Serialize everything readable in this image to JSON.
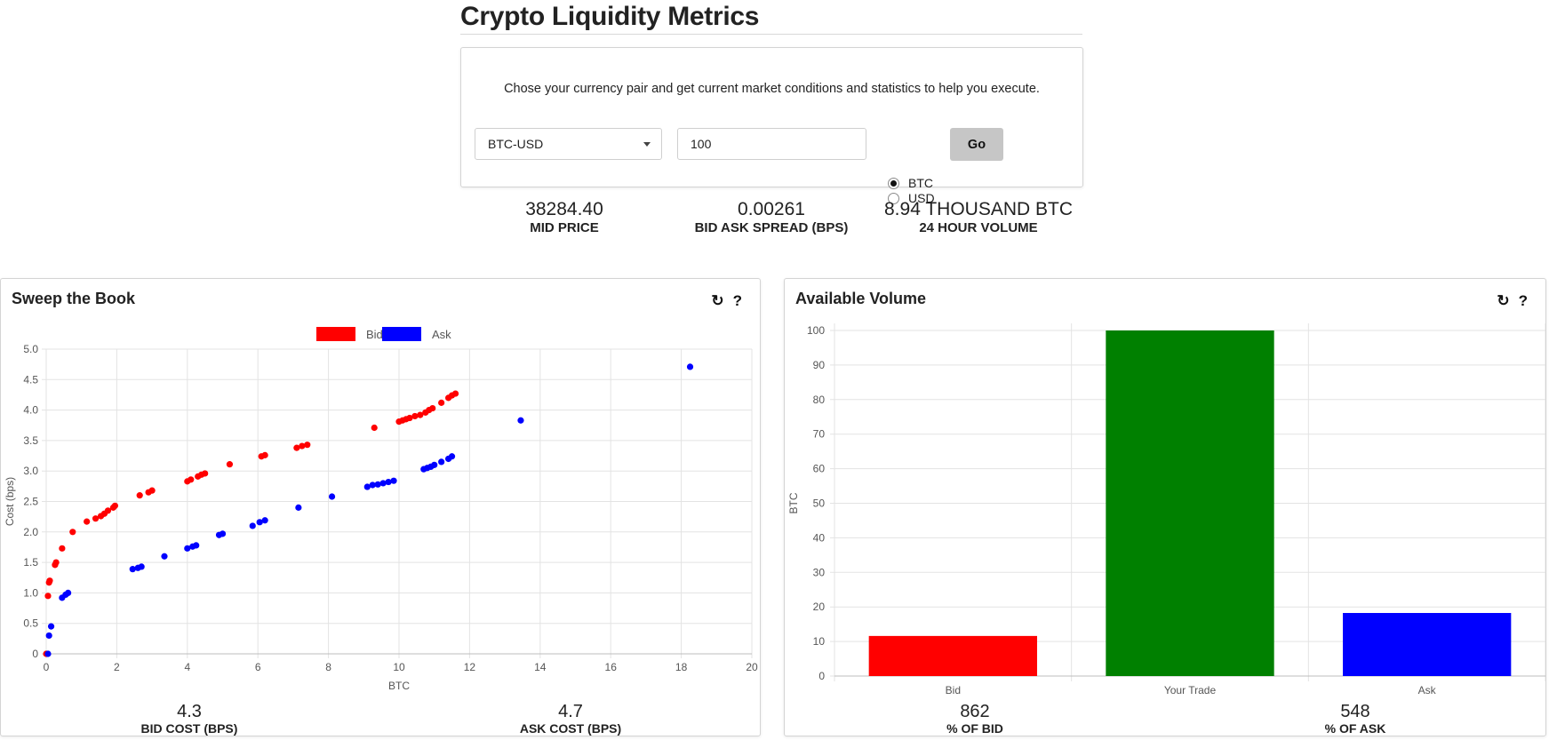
{
  "page": {
    "title": "Crypto Liquidity Metrics"
  },
  "form": {
    "intro": "Chose your currency pair and get current market conditions and statistics to help you execute.",
    "pair_selected": "BTC-USD",
    "amount_value": "100",
    "unit_options": [
      {
        "label": "BTC",
        "checked": true
      },
      {
        "label": "USD",
        "checked": false
      }
    ],
    "go_label": "Go"
  },
  "stats": [
    {
      "value": "38284.40",
      "label": "MID PRICE"
    },
    {
      "value": "0.00261",
      "label": "BID ASK SPREAD (BPS)"
    },
    {
      "value": "8.94 THOUSAND BTC",
      "label": "24 HOUR VOLUME"
    }
  ],
  "sweep_panel": {
    "title": "Sweep the Book",
    "tools": {
      "refresh_icon": "refresh-icon",
      "help_label": "?"
    },
    "metrics": [
      {
        "value": "4.3",
        "label": "BID COST (BPS)"
      },
      {
        "value": "4.7",
        "label": "ASK COST (BPS)"
      }
    ]
  },
  "volume_panel": {
    "title": "Available Volume",
    "tools": {
      "refresh_icon": "refresh-icon",
      "help_label": "?"
    },
    "metrics": [
      {
        "value": "862",
        "label": "% OF BID"
      },
      {
        "value": "548",
        "label": "% OF ASK"
      }
    ]
  },
  "chart_data": [
    {
      "type": "scatter",
      "title": "",
      "xlabel": "BTC",
      "ylabel": "Cost (bps)",
      "xlim": [
        0,
        20
      ],
      "ylim": [
        0,
        5
      ],
      "x_ticks": [
        "0",
        "2",
        "4",
        "6",
        "8",
        "10",
        "12",
        "14",
        "16",
        "18",
        "20"
      ],
      "y_ticks": [
        "0",
        "0.5",
        "1.0",
        "1.5",
        "2.0",
        "2.5",
        "3.0",
        "3.5",
        "4.0",
        "4.5",
        "5.0"
      ],
      "grid": true,
      "legend_position": "top-center",
      "series": [
        {
          "name": "Bid",
          "color": "#ff0000",
          "points": [
            [
              0,
              0
            ],
            [
              0.05,
              0.95
            ],
            [
              0.08,
              1.17
            ],
            [
              0.1,
              1.2
            ],
            [
              0.25,
              1.46
            ],
            [
              0.28,
              1.5
            ],
            [
              0.45,
              1.73
            ],
            [
              0.75,
              2.0
            ],
            [
              1.15,
              2.17
            ],
            [
              1.4,
              2.22
            ],
            [
              1.55,
              2.26
            ],
            [
              1.65,
              2.3
            ],
            [
              1.75,
              2.35
            ],
            [
              1.9,
              2.4
            ],
            [
              1.95,
              2.43
            ],
            [
              2.65,
              2.6
            ],
            [
              2.9,
              2.65
            ],
            [
              3.0,
              2.68
            ],
            [
              4.0,
              2.83
            ],
            [
              4.1,
              2.86
            ],
            [
              4.3,
              2.91
            ],
            [
              4.4,
              2.94
            ],
            [
              4.5,
              2.96
            ],
            [
              5.2,
              3.11
            ],
            [
              6.1,
              3.24
            ],
            [
              6.2,
              3.26
            ],
            [
              7.1,
              3.38
            ],
            [
              7.25,
              3.41
            ],
            [
              7.4,
              3.43
            ],
            [
              9.3,
              3.71
            ],
            [
              10.0,
              3.81
            ],
            [
              10.1,
              3.83
            ],
            [
              10.2,
              3.85
            ],
            [
              10.3,
              3.87
            ],
            [
              10.45,
              3.9
            ],
            [
              10.6,
              3.92
            ],
            [
              10.75,
              3.96
            ],
            [
              10.85,
              4.0
            ],
            [
              10.95,
              4.03
            ],
            [
              11.2,
              4.12
            ],
            [
              11.4,
              4.2
            ],
            [
              11.5,
              4.24
            ],
            [
              11.6,
              4.27
            ]
          ]
        },
        {
          "name": "Ask",
          "color": "#0000ff",
          "points": [
            [
              0.05,
              0
            ],
            [
              0.08,
              0.3
            ],
            [
              0.14,
              0.45
            ],
            [
              0.45,
              0.92
            ],
            [
              0.55,
              0.97
            ],
            [
              0.62,
              1.0
            ],
            [
              2.45,
              1.39
            ],
            [
              2.6,
              1.41
            ],
            [
              2.7,
              1.43
            ],
            [
              3.35,
              1.6
            ],
            [
              4.0,
              1.73
            ],
            [
              4.15,
              1.76
            ],
            [
              4.25,
              1.78
            ],
            [
              4.9,
              1.95
            ],
            [
              5.0,
              1.97
            ],
            [
              5.85,
              2.1
            ],
            [
              6.05,
              2.16
            ],
            [
              6.2,
              2.19
            ],
            [
              7.15,
              2.4
            ],
            [
              8.1,
              2.58
            ],
            [
              9.1,
              2.74
            ],
            [
              9.25,
              2.77
            ],
            [
              9.4,
              2.78
            ],
            [
              9.55,
              2.8
            ],
            [
              9.7,
              2.82
            ],
            [
              9.85,
              2.84
            ],
            [
              10.7,
              3.03
            ],
            [
              10.8,
              3.05
            ],
            [
              10.9,
              3.07
            ],
            [
              11.0,
              3.1
            ],
            [
              11.2,
              3.15
            ],
            [
              11.4,
              3.2
            ],
            [
              11.5,
              3.24
            ],
            [
              13.45,
              3.83
            ],
            [
              18.25,
              4.71
            ]
          ]
        }
      ]
    },
    {
      "type": "bar",
      "title": "",
      "xlabel": "",
      "ylabel": "BTC",
      "ylim": [
        0,
        100
      ],
      "y_ticks": [
        "0",
        "10",
        "20",
        "30",
        "40",
        "50",
        "60",
        "70",
        "80",
        "90",
        "100"
      ],
      "grid": true,
      "categories": [
        "Bid",
        "Your Trade",
        "Ask"
      ],
      "values": [
        11.6,
        100,
        18.25
      ],
      "colors": [
        "#ff0000",
        "#008000",
        "#0000ff"
      ]
    }
  ]
}
